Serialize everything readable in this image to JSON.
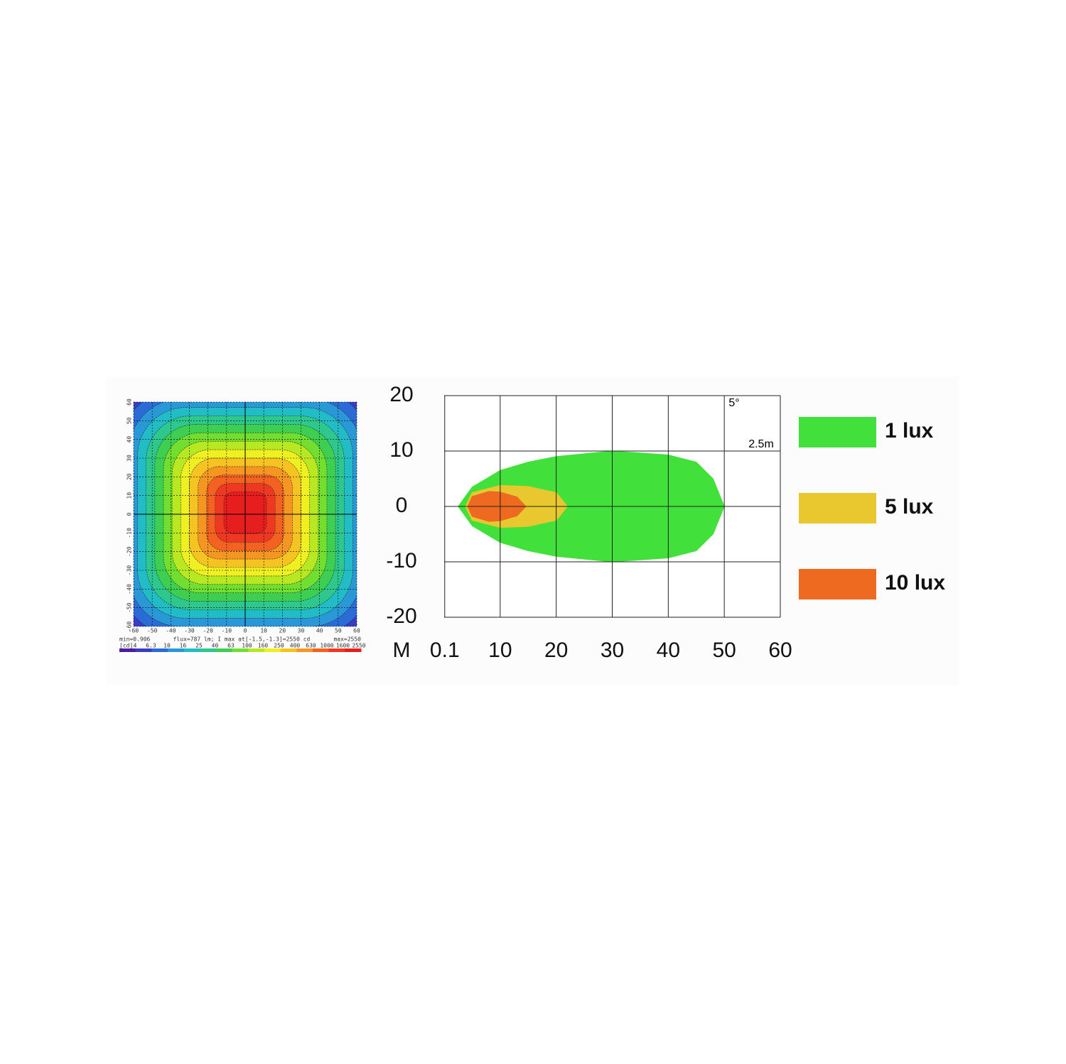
{
  "chart_data": [
    {
      "type": "heatmap",
      "xlim": [
        -60,
        60
      ],
      "ylim": [
        -60,
        60
      ],
      "xticks": [
        -60,
        -50,
        -40,
        -30,
        -20,
        -10,
        0,
        10,
        20,
        30,
        40,
        50,
        60
      ],
      "yticks": [
        -60,
        -50,
        -40,
        -30,
        -20,
        -10,
        0,
        10,
        20,
        30,
        40,
        50,
        60
      ],
      "grid": true,
      "annotations": [
        "min=0.906",
        "flux=787 lm; I max at[-1.5,-1.3]=2550 cd",
        "max=2550"
      ],
      "colorbar": {
        "label": "[cd]",
        "levels": [
          4,
          6.3,
          10,
          16,
          25,
          40,
          63,
          100,
          160,
          250,
          400,
          630,
          1000,
          1600,
          2550
        ],
        "colors": [
          "#4a1e9e",
          "#3b3cc6",
          "#2a6bd6",
          "#2a98d6",
          "#22bcc6",
          "#2ec88e",
          "#3ecf52",
          "#72de30",
          "#b8e822",
          "#eef022",
          "#f6c422",
          "#f69622",
          "#f46222",
          "#ee3822",
          "#e61e1e"
        ]
      }
    },
    {
      "type": "area",
      "x_label": "M",
      "xlim": [
        0,
        60
      ],
      "ylim": [
        -20,
        20
      ],
      "xticks": [
        0.1,
        10,
        20,
        30,
        40,
        50,
        60
      ],
      "yticks": [
        20,
        10,
        0,
        -10,
        -20
      ],
      "grid": true,
      "symmetric": true,
      "legend": "right",
      "annotations": [
        "5°",
        "2.5m"
      ],
      "series": [
        {
          "name": "1 lux",
          "color": "#42e03a",
          "x": [
            2.5,
            5,
            10,
            15,
            20,
            30,
            40,
            45,
            48,
            50
          ],
          "values": [
            0,
            3.5,
            6.5,
            8,
            9,
            10,
            9.3,
            8,
            5,
            0
          ]
        },
        {
          "name": "5 lux",
          "color": "#e8c82e",
          "x": [
            3.8,
            5,
            10,
            15,
            20,
            22
          ],
          "values": [
            0,
            2.5,
            3.8,
            3.6,
            2.5,
            0
          ]
        },
        {
          "name": "10 lux",
          "color": "#ee6a20",
          "x": [
            4.2,
            5,
            8,
            10,
            13,
            14.6
          ],
          "values": [
            0,
            1.8,
            2.7,
            2.6,
            1.7,
            0
          ]
        }
      ]
    }
  ]
}
